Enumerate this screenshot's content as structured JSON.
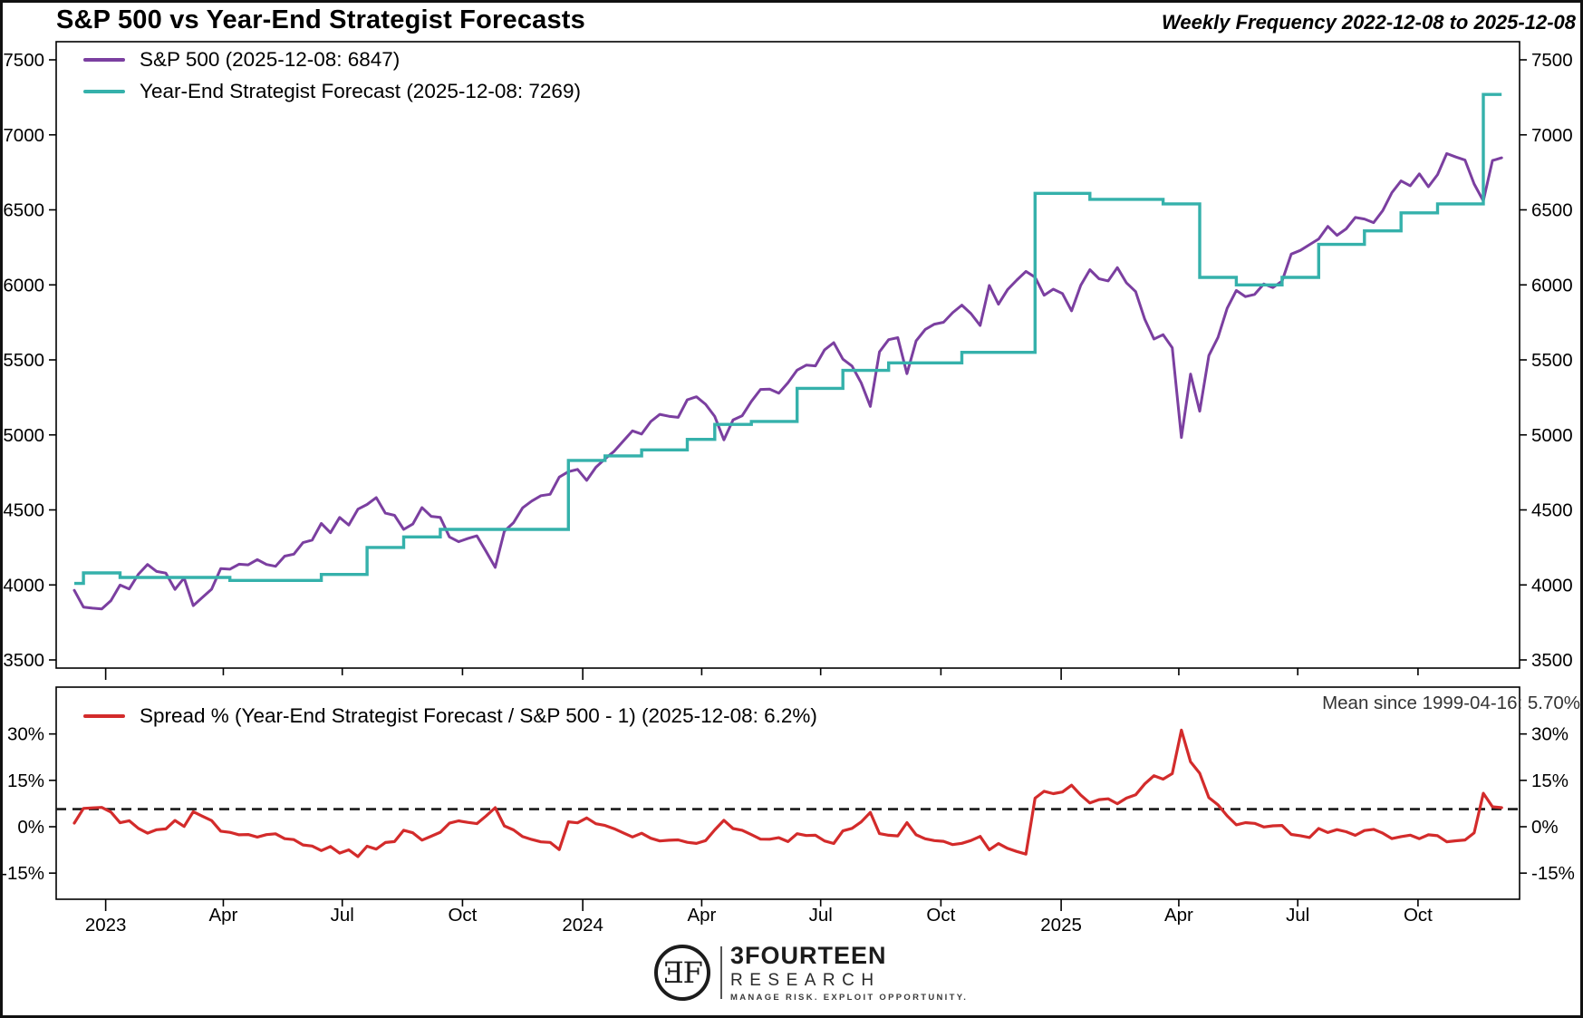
{
  "header": {
    "title": "S&P 500 vs Year-End Strategist Forecasts",
    "subtitle": "Weekly Frequency 2022-12-08 to 2025-12-08"
  },
  "top_chart": {
    "legend": [
      {
        "label": "S&P 500 (2025-12-08: 6847)",
        "color": "#7b3fa0"
      },
      {
        "label": "Year-End Strategist Forecast (2025-12-08: 7269)",
        "color": "#35b1ab"
      }
    ]
  },
  "bottom_chart": {
    "legend": [
      {
        "label": "Spread % (Year-End Strategist Forecast / S&P 500 - 1) (2025-12-08: 6.2%)",
        "color": "#d32b2b"
      }
    ],
    "mean_label": "Mean since 1999-04-16: 5.70%",
    "mean_value": 5.7
  },
  "chart_data": {
    "type": "line",
    "frequency": "weekly",
    "x_start_date": "2022-12-08",
    "x_end_date": "2025-12-08",
    "x_ticks": [
      {
        "label": "2023",
        "date": "2023-01-01",
        "year": true
      },
      {
        "label": "Apr",
        "date": "2023-04-01",
        "year": false
      },
      {
        "label": "Jul",
        "date": "2023-07-01",
        "year": false
      },
      {
        "label": "Oct",
        "date": "2023-10-01",
        "year": false
      },
      {
        "label": "2024",
        "date": "2024-01-01",
        "year": true
      },
      {
        "label": "Apr",
        "date": "2024-04-01",
        "year": false
      },
      {
        "label": "Jul",
        "date": "2024-07-01",
        "year": false
      },
      {
        "label": "Oct",
        "date": "2024-10-01",
        "year": false
      },
      {
        "label": "2025",
        "date": "2025-01-01",
        "year": true
      },
      {
        "label": "Apr",
        "date": "2025-04-01",
        "year": false
      },
      {
        "label": "Jul",
        "date": "2025-07-01",
        "year": false
      },
      {
        "label": "Oct",
        "date": "2025-10-01",
        "year": false
      }
    ],
    "top_panel": {
      "y_ticks": [
        7500,
        7000,
        6500,
        6000,
        5500,
        5000,
        4500,
        4000,
        3500
      ],
      "ylim": [
        3446,
        7620
      ],
      "series": [
        {
          "name": "sp500",
          "label": "S&P 500",
          "color": "#7b3fa0",
          "style": "line",
          "last_date": "2025-12-08",
          "last_value": 6847,
          "values": [
            3964,
            3852,
            3845,
            3840,
            3895,
            3999,
            3973,
            4071,
            4136,
            4090,
            4079,
            3970,
            4046,
            3862,
            3917,
            3971,
            4109,
            4105,
            4138,
            4134,
            4169,
            4136,
            4124,
            4192,
            4205,
            4282,
            4299,
            4410,
            4348,
            4450,
            4399,
            4505,
            4536,
            4582,
            4478,
            4464,
            4370,
            4406,
            4516,
            4457,
            4450,
            4320,
            4288,
            4309,
            4327,
            4224,
            4117,
            4358,
            4415,
            4514,
            4559,
            4595,
            4604,
            4719,
            4755,
            4770,
            4697,
            4784,
            4840,
            4891,
            4959,
            5027,
            5006,
            5089,
            5137,
            5124,
            5117,
            5234,
            5254,
            5204,
            5123,
            4967,
            5100,
            5128,
            5223,
            5303,
            5305,
            5278,
            5347,
            5432,
            5465,
            5460,
            5567,
            5615,
            5505,
            5459,
            5347,
            5190,
            5554,
            5635,
            5648,
            5408,
            5626,
            5703,
            5738,
            5751,
            5815,
            5865,
            5808,
            5729,
            5996,
            5871,
            5969,
            6032,
            6090,
            6051,
            5931,
            5971,
            5942,
            5827,
            5997,
            6101,
            6041,
            6026,
            6115,
            6013,
            5955,
            5770,
            5639,
            5668,
            5581,
            4983,
            5406,
            5158,
            5529,
            5650,
            5844,
            5963,
            5922,
            5936,
            6006,
            5982,
            6025,
            6205,
            6230,
            6268,
            6306,
            6390,
            6330,
            6373,
            6449,
            6439,
            6415,
            6495,
            6615,
            6693,
            6661,
            6740,
            6654,
            6735,
            6875,
            6852,
            6832,
            6672,
            6560,
            6829,
            6847
          ]
        },
        {
          "name": "yearend_forecast",
          "label": "Year-End Strategist Forecast",
          "color": "#35b1ab",
          "style": "step",
          "last_date": "2025-12-08",
          "last_value": 7269,
          "values": [
            4010,
            4080,
            4080,
            4080,
            4080,
            4050,
            4050,
            4050,
            4050,
            4050,
            4050,
            4050,
            4050,
            4050,
            4050,
            4050,
            4050,
            4030,
            4030,
            4030,
            4030,
            4030,
            4030,
            4030,
            4030,
            4030,
            4030,
            4070,
            4070,
            4070,
            4070,
            4070,
            4250,
            4250,
            4250,
            4250,
            4320,
            4320,
            4320,
            4320,
            4370,
            4370,
            4370,
            4370,
            4370,
            4370,
            4370,
            4370,
            4370,
            4370,
            4370,
            4370,
            4370,
            4370,
            4830,
            4830,
            4830,
            4830,
            4860,
            4860,
            4860,
            4860,
            4900,
            4900,
            4900,
            4900,
            4900,
            4970,
            4970,
            4970,
            5070,
            5070,
            5070,
            5070,
            5090,
            5090,
            5090,
            5090,
            5090,
            5310,
            5310,
            5310,
            5310,
            5310,
            5430,
            5430,
            5430,
            5430,
            5430,
            5480,
            5480,
            5480,
            5480,
            5480,
            5480,
            5480,
            5480,
            5550,
            5550,
            5550,
            5550,
            5550,
            5550,
            5550,
            5550,
            6610,
            6610,
            6610,
            6610,
            6610,
            6610,
            6570,
            6570,
            6570,
            6570,
            6570,
            6570,
            6570,
            6570,
            6540,
            6540,
            6540,
            6540,
            6050,
            6050,
            6050,
            6050,
            6000,
            6000,
            6000,
            6000,
            6000,
            6050,
            6050,
            6050,
            6050,
            6270,
            6270,
            6270,
            6270,
            6270,
            6360,
            6360,
            6360,
            6360,
            6480,
            6480,
            6480,
            6480,
            6540,
            6540,
            6540,
            6540,
            6540,
            7269,
            7269,
            7269
          ]
        }
      ]
    },
    "bottom_panel": {
      "y_ticks": [
        "30%",
        "15%",
        "0%",
        "-15%"
      ],
      "y_tick_values": [
        30,
        15,
        0,
        -15
      ],
      "ylim": [
        -24,
        45
      ],
      "series": [
        {
          "name": "spread_pct",
          "label": "Spread %",
          "color": "#d32b2b",
          "derived_from": "yearend_forecast / sp500 - 1",
          "last_date": "2025-12-08",
          "last_value_pct": 6.2
        }
      ],
      "mean_line": {
        "value_pct": 5.7,
        "style": "dashed",
        "color": "#1a1a1a"
      }
    }
  },
  "footer": {
    "logo_monogram": "ƎF",
    "logo_name": "3FOURTEEN",
    "logo_sub": "RESEARCH",
    "logo_tagline": "MANAGE RISK. EXPLOIT OPPORTUNITY."
  },
  "colors": {
    "sp500": "#7b3fa0",
    "forecast": "#35b1ab",
    "spread": "#d32b2b",
    "mean_dash": "#1a1a1a",
    "axis": "#000000"
  }
}
